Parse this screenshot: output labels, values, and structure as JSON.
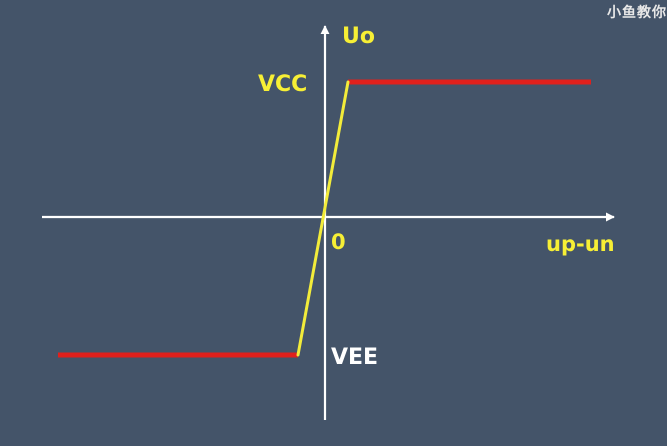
{
  "watermark": "小鱼教你",
  "labels": {
    "y_axis": "Uo",
    "x_axis": "up-un",
    "origin": "0",
    "vcc": "VCC",
    "vee": "VEE"
  },
  "colors": {
    "background": "#445469",
    "axes": "#ffffff",
    "saturation": "#e0201c",
    "linear": "#f3ec3a",
    "label_yellow": "#f7ef35",
    "label_white": "#ffffff"
  }
}
